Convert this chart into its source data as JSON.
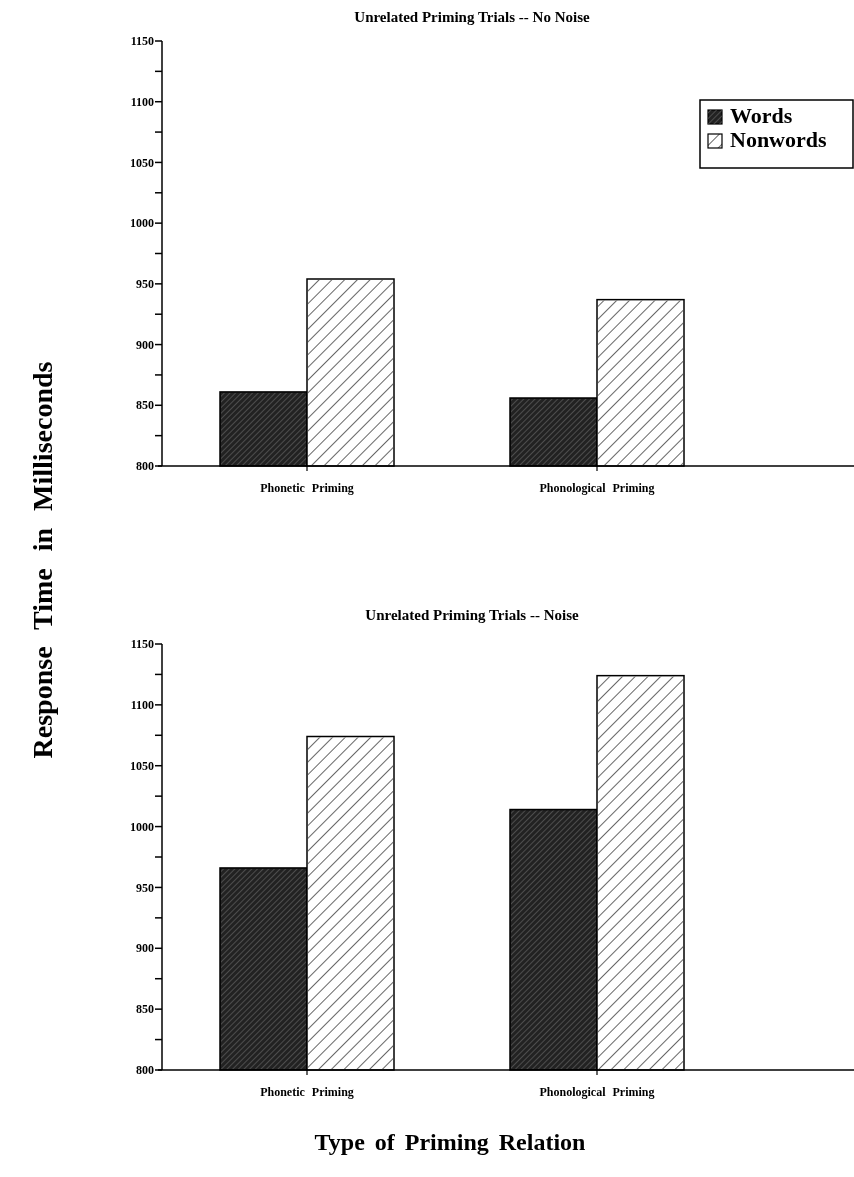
{
  "chart_data": [
    {
      "type": "bar",
      "title": "Unrelated Priming Trials -- No Noise",
      "ylabel": "Response Time in Milliseconds",
      "categories": [
        "Phonetic Priming",
        "Phonological Priming"
      ],
      "series": [
        {
          "name": "Words",
          "color": "#222222",
          "values": [
            861,
            856
          ]
        },
        {
          "name": "Nonwords",
          "color": "#ffffff",
          "values": [
            954,
            937
          ]
        }
      ],
      "ylim": [
        800,
        1150
      ],
      "yticks": [
        800,
        {
          "value": 825,
          "label": null
        },
        850,
        {
          "value": 875,
          "label": null
        },
        900,
        {
          "value": 925,
          "label": null
        },
        950,
        {
          "value": 975,
          "label": null
        },
        1000,
        {
          "value": 1025,
          "label": null
        },
        1050,
        {
          "value": 1075,
          "label": null
        },
        1100,
        {
          "value": 1125,
          "label": null
        },
        1150
      ],
      "legend": "top right"
    },
    {
      "type": "bar",
      "title": "Unrelated Priming Trials -- Noise",
      "xlabel": "Type of Priming Relation",
      "categories": [
        "Phonetic Priming",
        "Phonological Priming"
      ],
      "series": [
        {
          "color": "#222222",
          "values": [
            966,
            1014
          ]
        },
        {
          "color": "#ffffff",
          "values": [
            1074,
            1124
          ]
        }
      ],
      "ylim": [
        800,
        1150
      ],
      "yticks": [
        800,
        {
          "value": 825,
          "label": null
        },
        850,
        {
          "value": 875,
          "label": null
        },
        900,
        {
          "value": 925,
          "label": null
        },
        950,
        {
          "value": 975,
          "label": null
        },
        1000,
        {
          "value": 1025,
          "label": null
        },
        1050,
        {
          "value": 1075,
          "label": null
        },
        1100,
        {
          "value": 1125,
          "label": null
        },
        1150
      ]
    }
  ]
}
